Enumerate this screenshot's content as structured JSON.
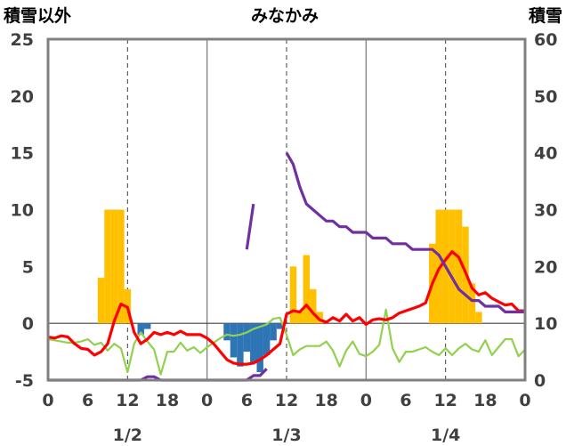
{
  "chart_data": {
    "type": "bar+line",
    "title": "みなかみ",
    "left_axis_title": "積雪以外",
    "right_axis_title": "積雪",
    "left_axis": {
      "min": -5,
      "max": 25,
      "ticks": [
        -5,
        0,
        5,
        10,
        15,
        20,
        25
      ]
    },
    "right_axis": {
      "min": 0,
      "max": 60,
      "ticks": [
        0,
        10,
        20,
        30,
        40,
        50,
        60
      ]
    },
    "x_axis": {
      "hours_range": [
        0,
        72
      ],
      "tick_labels": [
        "0",
        "6",
        "12",
        "18",
        "0",
        "6",
        "12",
        "18",
        "0",
        "6",
        "12",
        "18",
        "0"
      ],
      "day_labels": [
        "1/2",
        "1/3",
        "1/4"
      ]
    },
    "grid": {
      "solid_hours": [
        24,
        48
      ],
      "dashed_hours": [
        12,
        36,
        60
      ]
    },
    "colors": {
      "snowfall_bar": "#FFC000",
      "negative_bar": "#2E75B6",
      "red_line": "#FF0000",
      "green_line": "#92D050",
      "purple_line": "#7030A0",
      "frame": "#808080"
    },
    "snowfall_bars": [
      {
        "hour": 8,
        "value": 4
      },
      {
        "hour": 9,
        "value": 10
      },
      {
        "hour": 10,
        "value": 10
      },
      {
        "hour": 11,
        "value": 10
      },
      {
        "hour": 12,
        "value": 3
      },
      {
        "hour": 37,
        "value": 5
      },
      {
        "hour": 38,
        "value": 1
      },
      {
        "hour": 39,
        "value": 6
      },
      {
        "hour": 40,
        "value": 3
      },
      {
        "hour": 41,
        "value": 1
      },
      {
        "hour": 58,
        "value": 7
      },
      {
        "hour": 59,
        "value": 10
      },
      {
        "hour": 60,
        "value": 10
      },
      {
        "hour": 61,
        "value": 10
      },
      {
        "hour": 62,
        "value": 10
      },
      {
        "hour": 63,
        "value": 8.5
      },
      {
        "hour": 64,
        "value": 3.5
      },
      {
        "hour": 65,
        "value": 1
      }
    ],
    "negative_bars": [
      {
        "hour": 14,
        "value": -1
      },
      {
        "hour": 15,
        "value": -0.5
      },
      {
        "hour": 27,
        "value": -1.5
      },
      {
        "hour": 28,
        "value": -3
      },
      {
        "hour": 29,
        "value": -3.8
      },
      {
        "hour": 30,
        "value": -2.5
      },
      {
        "hour": 31,
        "value": -3.5
      },
      {
        "hour": 32,
        "value": -4.3
      },
      {
        "hour": 33,
        "value": -2.8
      },
      {
        "hour": 34,
        "value": -1.5
      },
      {
        "hour": 35,
        "value": -0.5
      }
    ],
    "red_line": [
      [
        0,
        -1.2
      ],
      [
        1,
        -1.3
      ],
      [
        2,
        -1.1
      ],
      [
        3,
        -1.2
      ],
      [
        4,
        -1.8
      ],
      [
        5,
        -2.2
      ],
      [
        6,
        -2.3
      ],
      [
        7,
        -2.8
      ],
      [
        8,
        -2.5
      ],
      [
        9,
        -1.8
      ],
      [
        10,
        0.2
      ],
      [
        11,
        1.7
      ],
      [
        12,
        1.4
      ],
      [
        13,
        -0.8
      ],
      [
        14,
        -1.8
      ],
      [
        15,
        -1.4
      ],
      [
        16,
        -0.8
      ],
      [
        17,
        -1.0
      ],
      [
        18,
        -0.8
      ],
      [
        19,
        -1.0
      ],
      [
        20,
        -0.7
      ],
      [
        21,
        -1.0
      ],
      [
        22,
        -1.0
      ],
      [
        23,
        -1.0
      ],
      [
        24,
        -1.3
      ],
      [
        25,
        -1.8
      ],
      [
        26,
        -2.5
      ],
      [
        27,
        -3.2
      ],
      [
        28,
        -3.5
      ],
      [
        29,
        -3.6
      ],
      [
        30,
        -3.6
      ],
      [
        31,
        -3.5
      ],
      [
        32,
        -3.2
      ],
      [
        33,
        -2.8
      ],
      [
        34,
        -2.3
      ],
      [
        35,
        -1.8
      ],
      [
        36,
        0.8
      ],
      [
        37,
        1.1
      ],
      [
        38,
        1.0
      ],
      [
        39,
        1.6
      ],
      [
        40,
        0.9
      ],
      [
        41,
        0.3
      ],
      [
        42,
        0.1
      ],
      [
        43,
        0.5
      ],
      [
        44,
        0.2
      ],
      [
        45,
        0.8
      ],
      [
        46,
        0.2
      ],
      [
        47,
        0.5
      ],
      [
        48,
        -0.1
      ],
      [
        49,
        0.3
      ],
      [
        50,
        0.4
      ],
      [
        51,
        0.3
      ],
      [
        52,
        0.5
      ],
      [
        53,
        0.9
      ],
      [
        54,
        1.1
      ],
      [
        55,
        1.3
      ],
      [
        56,
        1.5
      ],
      [
        57,
        1.8
      ],
      [
        58,
        3.5
      ],
      [
        59,
        4.8
      ],
      [
        60,
        5.6
      ],
      [
        61,
        6.3
      ],
      [
        62,
        5.8
      ],
      [
        63,
        4.5
      ],
      [
        64,
        3.1
      ],
      [
        65,
        2.5
      ],
      [
        66,
        2.7
      ],
      [
        67,
        2.2
      ],
      [
        68,
        1.9
      ],
      [
        69,
        1.6
      ],
      [
        70,
        1.7
      ],
      [
        71,
        1.1
      ],
      [
        72,
        1.1
      ]
    ],
    "green_line": [
      [
        0,
        -1.4
      ],
      [
        1,
        -1.5
      ],
      [
        2,
        -1.6
      ],
      [
        3,
        -1.7
      ],
      [
        4,
        -1.7
      ],
      [
        5,
        -1.6
      ],
      [
        6,
        -1.4
      ],
      [
        7,
        -1.9
      ],
      [
        8,
        -1.7
      ],
      [
        9,
        -2.4
      ],
      [
        10,
        -1.8
      ],
      [
        11,
        -2.2
      ],
      [
        12,
        -4.3
      ],
      [
        13,
        -1.8
      ],
      [
        14,
        -0.8
      ],
      [
        15,
        -1.6
      ],
      [
        16,
        -2.3
      ],
      [
        17,
        -4.5
      ],
      [
        18,
        -2.5
      ],
      [
        19,
        -2.5
      ],
      [
        20,
        -1.7
      ],
      [
        21,
        -2.4
      ],
      [
        22,
        -2.1
      ],
      [
        23,
        -2.6
      ],
      [
        24,
        -2.1
      ],
      [
        25,
        -1.7
      ],
      [
        26,
        -1.3
      ],
      [
        27,
        -1.0
      ],
      [
        28,
        -1.1
      ],
      [
        29,
        -1.0
      ],
      [
        30,
        -0.8
      ],
      [
        31,
        -0.5
      ],
      [
        32,
        -0.3
      ],
      [
        33,
        -0.1
      ],
      [
        34,
        0.4
      ],
      [
        35,
        0.5
      ],
      [
        36,
        -1.0
      ],
      [
        37,
        -2.8
      ],
      [
        38,
        -2.3
      ],
      [
        39,
        -2.0
      ],
      [
        40,
        -2.0
      ],
      [
        41,
        -2.0
      ],
      [
        42,
        -1.6
      ],
      [
        43,
        -2.4
      ],
      [
        44,
        -3.8
      ],
      [
        45,
        -2.4
      ],
      [
        46,
        -1.6
      ],
      [
        47,
        -2.7
      ],
      [
        48,
        -2.9
      ],
      [
        49,
        -2.5
      ],
      [
        50,
        -1.9
      ],
      [
        51,
        1.2
      ],
      [
        52,
        -2.2
      ],
      [
        53,
        -3.4
      ],
      [
        54,
        -2.5
      ],
      [
        55,
        -2.5
      ],
      [
        56,
        -2.3
      ],
      [
        57,
        -2.1
      ],
      [
        58,
        -2.5
      ],
      [
        59,
        -2.8
      ],
      [
        60,
        -2.2
      ],
      [
        61,
        -2.8
      ],
      [
        62,
        -2.2
      ],
      [
        63,
        -1.8
      ],
      [
        64,
        -2.3
      ],
      [
        65,
        -2.5
      ],
      [
        66,
        -1.5
      ],
      [
        67,
        -2.8
      ],
      [
        68,
        -2.1
      ],
      [
        69,
        -1.4
      ],
      [
        70,
        -1.4
      ],
      [
        71,
        -2.9
      ],
      [
        72,
        -2.3
      ]
    ],
    "purple_line_segments": [
      [
        [
          0,
          0
        ],
        [
          14,
          0
        ],
        [
          15,
          0.6
        ],
        [
          16,
          0.6
        ],
        [
          17,
          0
        ],
        [
          30,
          0
        ],
        [
          31,
          0.8
        ],
        [
          32,
          0.8
        ],
        [
          33,
          2
        ]
      ],
      [
        [
          30,
          23
        ],
        [
          31,
          31
        ]
      ],
      [
        [
          36,
          40
        ],
        [
          37,
          38
        ],
        [
          38,
          34
        ],
        [
          39,
          31
        ],
        [
          40,
          30
        ],
        [
          41,
          29
        ],
        [
          42,
          28
        ],
        [
          43,
          28
        ],
        [
          44,
          27
        ],
        [
          45,
          27
        ],
        [
          46,
          26
        ],
        [
          47,
          26
        ],
        [
          48,
          26
        ],
        [
          49,
          25
        ],
        [
          50,
          25
        ],
        [
          51,
          25
        ],
        [
          52,
          24
        ],
        [
          53,
          24
        ],
        [
          54,
          24
        ],
        [
          55,
          23
        ],
        [
          56,
          23
        ],
        [
          57,
          23
        ],
        [
          58,
          23
        ],
        [
          59,
          22
        ],
        [
          60,
          20
        ],
        [
          61,
          18
        ],
        [
          62,
          16
        ],
        [
          63,
          15
        ],
        [
          64,
          14
        ],
        [
          65,
          14
        ],
        [
          66,
          13
        ],
        [
          67,
          13
        ],
        [
          68,
          13
        ],
        [
          69,
          12
        ],
        [
          70,
          12
        ],
        [
          71,
          12
        ],
        [
          72,
          12
        ]
      ]
    ]
  }
}
